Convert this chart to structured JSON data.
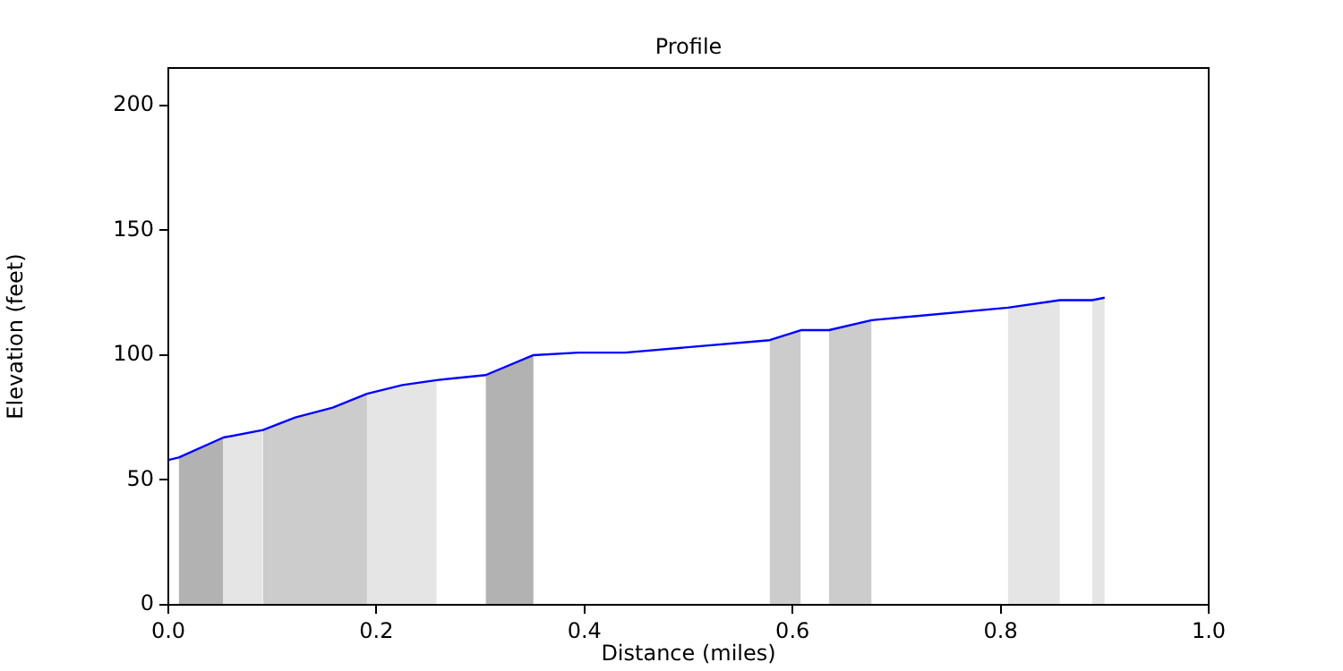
{
  "chart_data": {
    "type": "line",
    "title": "Profile",
    "xlabel": "Distance (miles)",
    "ylabel": "Elevation (feet)",
    "xlim": [
      0,
      1
    ],
    "ylim": [
      0,
      215
    ],
    "xticks": [
      {
        "value": 0,
        "label": "0.0"
      },
      {
        "value": 0.2,
        "label": "0.2"
      },
      {
        "value": 0.4,
        "label": "0.4"
      },
      {
        "value": 0.6,
        "label": "0.6"
      },
      {
        "value": 0.8,
        "label": "0.8"
      },
      {
        "value": 1,
        "label": "1.0"
      }
    ],
    "yticks": [
      0,
      50,
      100,
      150,
      200
    ],
    "grid": false,
    "legend": false,
    "series": [
      {
        "type": "area",
        "color": "#b2b2b2",
        "x": [
          0.01,
          0.053
        ],
        "values": [
          59,
          67
        ]
      },
      {
        "type": "area",
        "color": "#e5e5e5",
        "x": [
          0.053,
          0.091
        ],
        "values": [
          67,
          70
        ]
      },
      {
        "type": "area",
        "color": "#cccccc",
        "x": [
          0.091,
          0.122,
          0.158,
          0.191
        ],
        "values": [
          70,
          75,
          79,
          84.5
        ]
      },
      {
        "type": "area",
        "color": "#e5e5e5",
        "x": [
          0.191,
          0.225,
          0.258
        ],
        "values": [
          84.5,
          88,
          90
        ]
      },
      {
        "type": "area",
        "color": "#b2b2b2",
        "x": [
          0.305,
          0.351
        ],
        "values": [
          92,
          100
        ]
      },
      {
        "type": "area",
        "color": "#cccccc",
        "x": [
          0.578,
          0.608
        ],
        "values": [
          106,
          110
        ]
      },
      {
        "type": "area",
        "color": "#cccccc",
        "x": [
          0.635,
          0.676
        ],
        "values": [
          110,
          114
        ]
      },
      {
        "type": "area",
        "color": "#e5e5e5",
        "x": [
          0.807,
          0.857
        ],
        "values": [
          119,
          122
        ]
      },
      {
        "type": "area",
        "color": "#e5e5e5",
        "x": [
          0.888,
          0.9
        ],
        "values": [
          122,
          123
        ]
      },
      {
        "type": "line",
        "color": "#0000ff",
        "x": [
          0,
          0.01,
          0.053,
          0.091,
          0.122,
          0.158,
          0.191,
          0.225,
          0.258,
          0.305,
          0.351,
          0.394,
          0.439,
          0.578,
          0.608,
          0.635,
          0.676,
          0.807,
          0.857,
          0.888,
          0.9
        ],
        "values": [
          58,
          59,
          67,
          70,
          75,
          79,
          84.5,
          88,
          90,
          92,
          100,
          101,
          101,
          106,
          110,
          110,
          114,
          119,
          122,
          122,
          123
        ]
      }
    ]
  }
}
